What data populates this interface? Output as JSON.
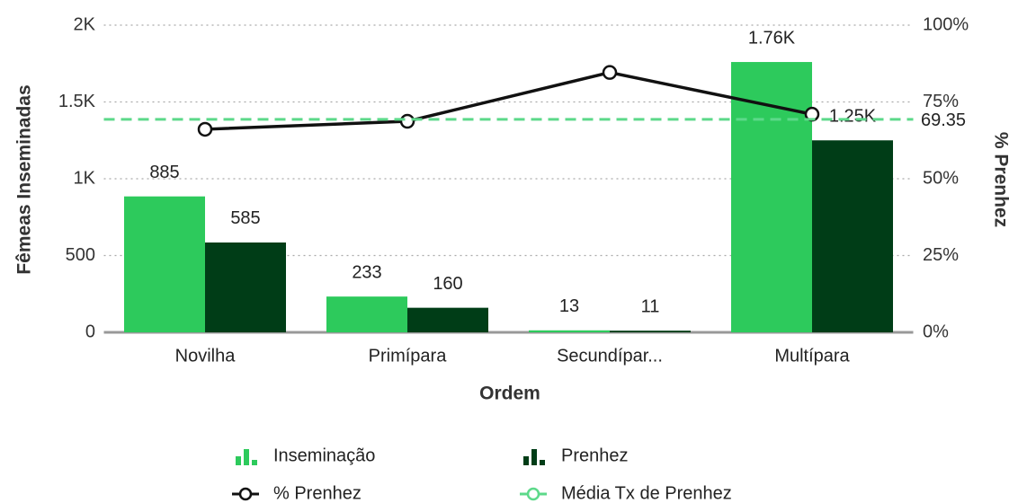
{
  "chart_data": {
    "type": "bar",
    "categories": [
      "Novilha",
      "Primípara",
      "Secundípar...",
      "Multípara"
    ],
    "series": [
      {
        "name": "Inseminação",
        "color": "#2dca5c",
        "values": [
          885,
          233,
          13,
          1760
        ],
        "value_labels": [
          "885",
          "233",
          "13",
          "1.76K"
        ]
      },
      {
        "name": "Prenhez",
        "color": "#003d17",
        "values": [
          585,
          160,
          11,
          1250
        ],
        "value_labels": [
          "585",
          "160",
          "11",
          "1.25K"
        ]
      },
      {
        "name": "% Prenhez",
        "color": "#111111",
        "type": "line",
        "axis": "y2",
        "values": [
          66.1,
          68.7,
          84.6,
          71.0
        ]
      }
    ],
    "reference_lines": [
      {
        "name": "Média Tx de Prenhez",
        "value": 69.35,
        "color": "#5dd98a",
        "axis": "y2"
      }
    ],
    "xlabel": "Ordem",
    "ylabel": "Fêmeas Inseminadas",
    "y2label": "% Prenhez",
    "ylim": [
      0,
      2000
    ],
    "yticks": [
      0,
      500,
      {
        "value": 1000,
        "label": "1K"
      },
      {
        "value": 1500,
        "label": "1.5K"
      },
      {
        "value": 2000,
        "label": "2K"
      }
    ],
    "y2lim": [
      0,
      100
    ],
    "y2ticks": [
      {
        "value": 0,
        "label": "0%"
      },
      {
        "value": 25,
        "label": "25%"
      },
      {
        "value": 50,
        "label": "50%"
      },
      {
        "value": 75,
        "label": "75%"
      },
      {
        "value": 100,
        "label": "100%"
      }
    ],
    "grid": true
  }
}
